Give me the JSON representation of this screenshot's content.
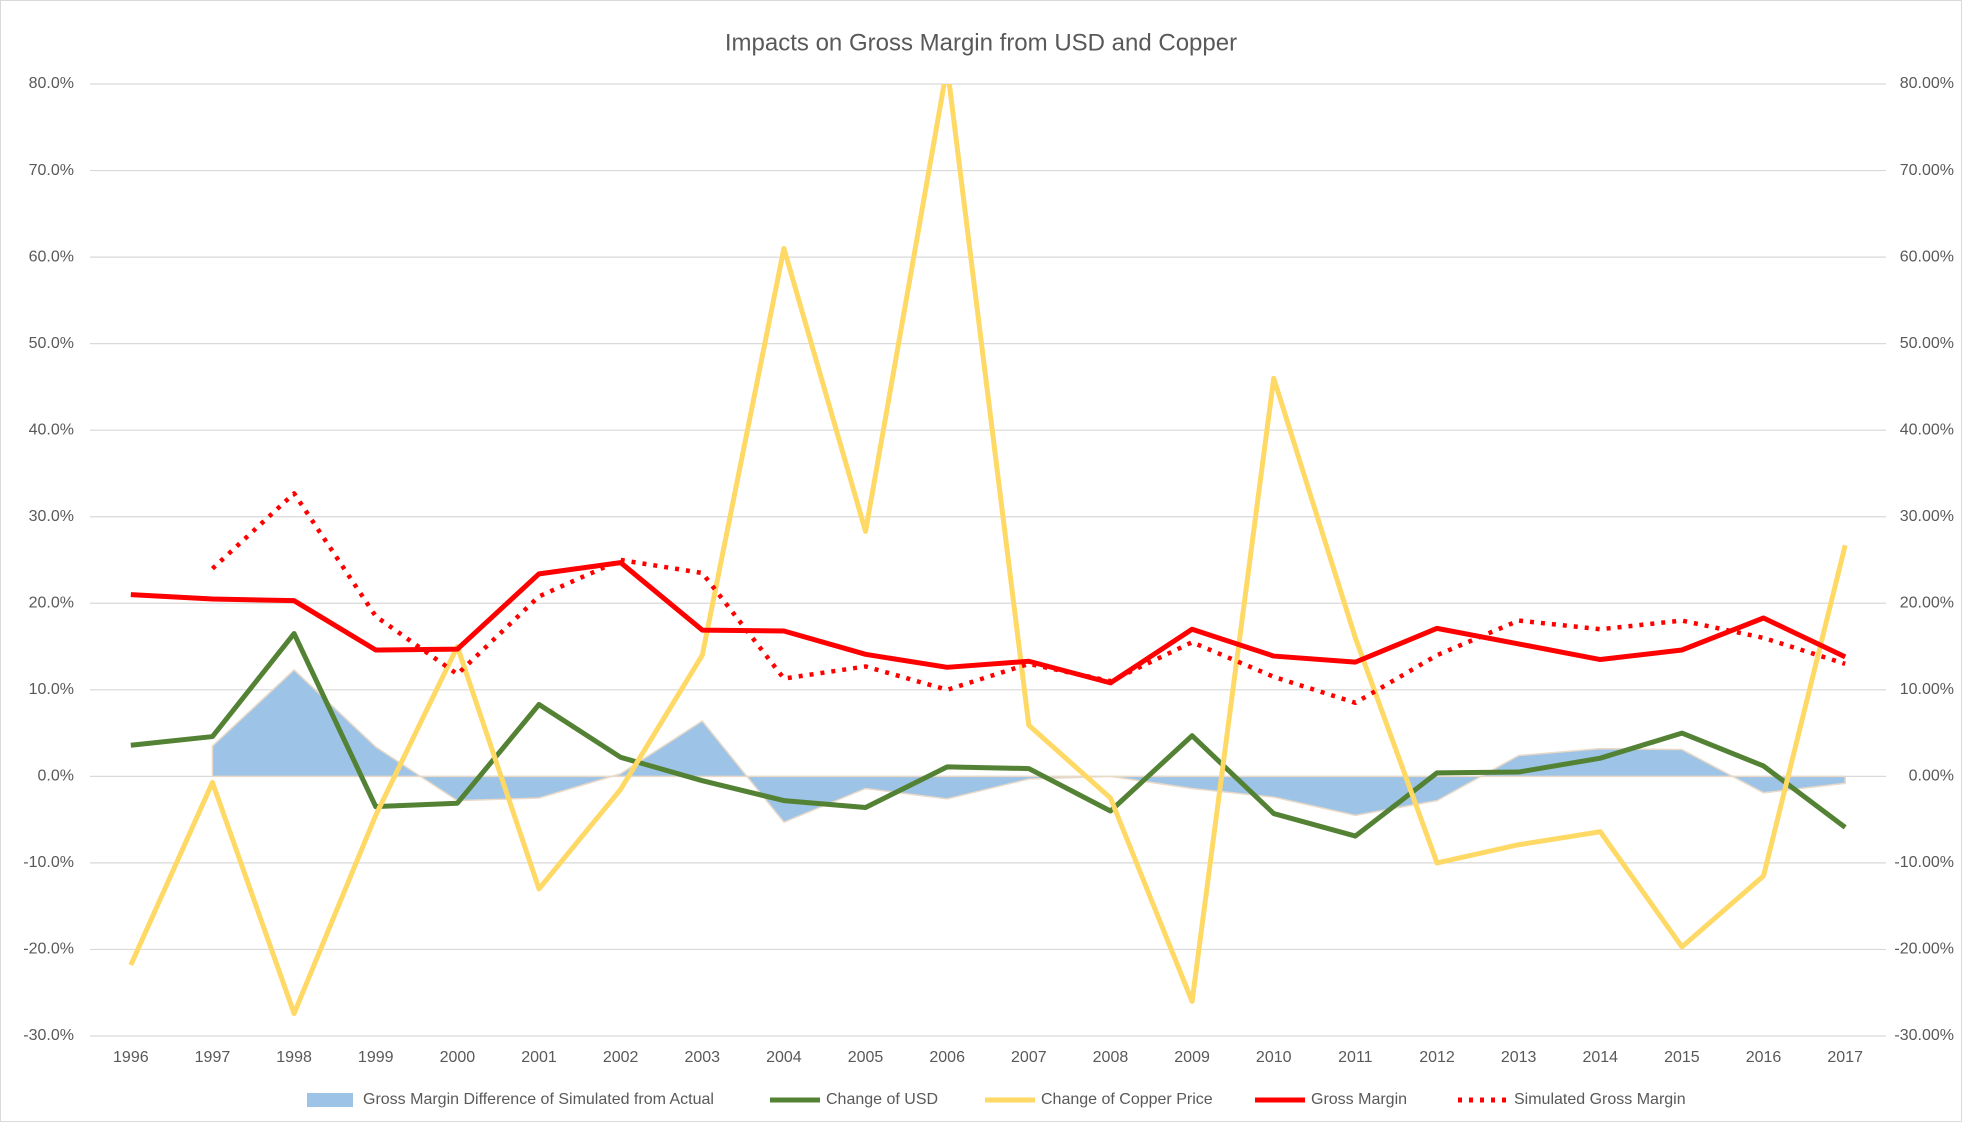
{
  "chart_data": {
    "type": "line",
    "title": "Impacts on Gross Margin from USD and Copper",
    "categories": [
      "1996",
      "1997",
      "1998",
      "1999",
      "2000",
      "2001",
      "2002",
      "2003",
      "2004",
      "2005",
      "2006",
      "2007",
      "2008",
      "2009",
      "2010",
      "2011",
      "2012",
      "2013",
      "2014",
      "2015",
      "2016",
      "2017"
    ],
    "series": [
      {
        "name": "Gross Margin Difference of Simulated from Actual",
        "mark": "area",
        "color": "#9dc3e6",
        "values": [
          null,
          3.5,
          12.3,
          3.4,
          -2.8,
          -2.5,
          0.3,
          6.4,
          -5.3,
          -1.4,
          -2.6,
          -0.3,
          0.0,
          -1.4,
          -2.4,
          -4.5,
          -2.8,
          2.4,
          3.2,
          3.1,
          -1.9,
          -0.8
        ]
      },
      {
        "name": "Change of USD",
        "mark": "line",
        "color": "#548235",
        "values": [
          3.6,
          4.6,
          16.5,
          -3.5,
          -3.1,
          8.3,
          2.2,
          -0.5,
          -2.8,
          -3.6,
          1.1,
          0.9,
          -4.0,
          4.7,
          -4.3,
          -6.9,
          0.4,
          0.5,
          2.1,
          5.0,
          1.2,
          -5.9
        ]
      },
      {
        "name": "Change of Copper Price",
        "mark": "line",
        "color": "#ffd966",
        "values": [
          -21.8,
          -0.7,
          -27.4,
          -4.5,
          15.0,
          -13.0,
          -1.5,
          14.0,
          61.0,
          28.3,
          82.0,
          5.9,
          -2.5,
          -26.0,
          46.0,
          16.0,
          -10.0,
          -7.9,
          -6.4,
          -19.7,
          -11.5,
          26.7
        ]
      },
      {
        "name": "Gross Margin",
        "mark": "line",
        "color": "#ff0000",
        "values": [
          21.0,
          20.5,
          20.3,
          14.6,
          14.7,
          23.4,
          24.7,
          16.9,
          16.8,
          14.1,
          12.6,
          13.3,
          10.8,
          17.0,
          13.9,
          13.2,
          17.1,
          15.3,
          13.5,
          14.6,
          18.3,
          13.8
        ]
      },
      {
        "name": "Simulated Gross Margin",
        "mark": "dotted",
        "color": "#ff0000",
        "values": [
          null,
          24.0,
          32.7,
          18.5,
          11.8,
          20.8,
          25.0,
          23.5,
          11.3,
          12.7,
          10.0,
          13.0,
          11.0,
          15.5,
          11.5,
          8.5,
          14.0,
          18.0,
          17.0,
          18.0,
          16.0,
          13.0
        ]
      }
    ],
    "ylim": [
      -30,
      80
    ],
    "yticks": [
      {
        "value": -30,
        "label": "-30.0%"
      },
      {
        "value": -20,
        "label": "-20.0%"
      },
      {
        "value": -10,
        "label": "-10.0%"
      },
      {
        "value": 0,
        "label": "0.0%"
      },
      {
        "value": 10,
        "label": "10.0%"
      },
      {
        "value": 20,
        "label": "20.0%"
      },
      {
        "value": 30,
        "label": "30.0%"
      },
      {
        "value": 40,
        "label": "40.0%"
      },
      {
        "value": 50,
        "label": "50.0%"
      },
      {
        "value": 60,
        "label": "60.0%"
      },
      {
        "value": 70,
        "label": "70.0%"
      },
      {
        "value": 80,
        "label": "80.0%"
      }
    ],
    "y2lim": [
      -30,
      80
    ],
    "y2ticks": [
      {
        "value": -30,
        "label": "-30.00%"
      },
      {
        "value": -20,
        "label": "-20.00%"
      },
      {
        "value": -10,
        "label": "-10.00%"
      },
      {
        "value": 0,
        "label": "0.00%"
      },
      {
        "value": 10,
        "label": "10.00%"
      },
      {
        "value": 20,
        "label": "20.00%"
      },
      {
        "value": 30,
        "label": "30.00%"
      },
      {
        "value": 40,
        "label": "40.00%"
      },
      {
        "value": 50,
        "label": "50.00%"
      },
      {
        "value": 60,
        "label": "60.00%"
      },
      {
        "value": 70,
        "label": "70.00%"
      },
      {
        "value": 80,
        "label": "80.00%"
      }
    ],
    "grid": true,
    "legend": "bottom"
  }
}
